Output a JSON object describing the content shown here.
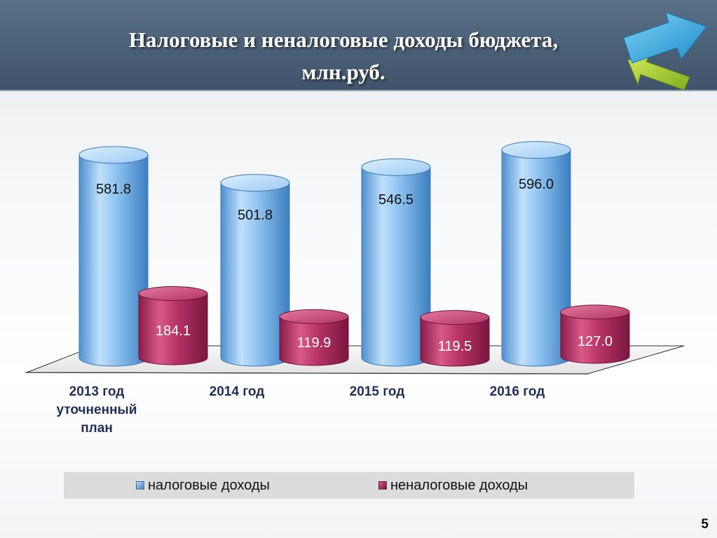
{
  "slide": {
    "title_line1": "Налоговые и неналоговые доходы бюджета,",
    "title_line2": "млн.руб.",
    "page_number": "5"
  },
  "colors": {
    "header": "#4a6076",
    "tax": "#7db6ea",
    "nontax": "#c53a6c",
    "axis_label": "#1d2f5c"
  },
  "chart_data": {
    "type": "bar",
    "style": "3d-cylinder",
    "categories": [
      "2013 год уточненный план",
      "2014 год",
      "2015 год",
      "2016 год"
    ],
    "category_lines": [
      [
        "2013 год",
        "уточненный",
        "план"
      ],
      [
        "2014 год"
      ],
      [
        "2015 год"
      ],
      [
        "2016 год"
      ]
    ],
    "series": [
      {
        "name": "налоговые доходы",
        "values": [
          581.8,
          501.8,
          546.5,
          596.0
        ],
        "labels": [
          "581.8",
          "501.8",
          "546.5",
          "596.0"
        ],
        "color": "#7db6ea"
      },
      {
        "name": "неналоговые доходы",
        "values": [
          184.1,
          119.9,
          119.5,
          127.0
        ],
        "labels": [
          "184.1",
          "119.9",
          "119.5",
          "127.0"
        ],
        "color": "#c53a6c"
      }
    ],
    "ylim": [
      0,
      620
    ],
    "grid": false,
    "legend_position": "bottom"
  }
}
